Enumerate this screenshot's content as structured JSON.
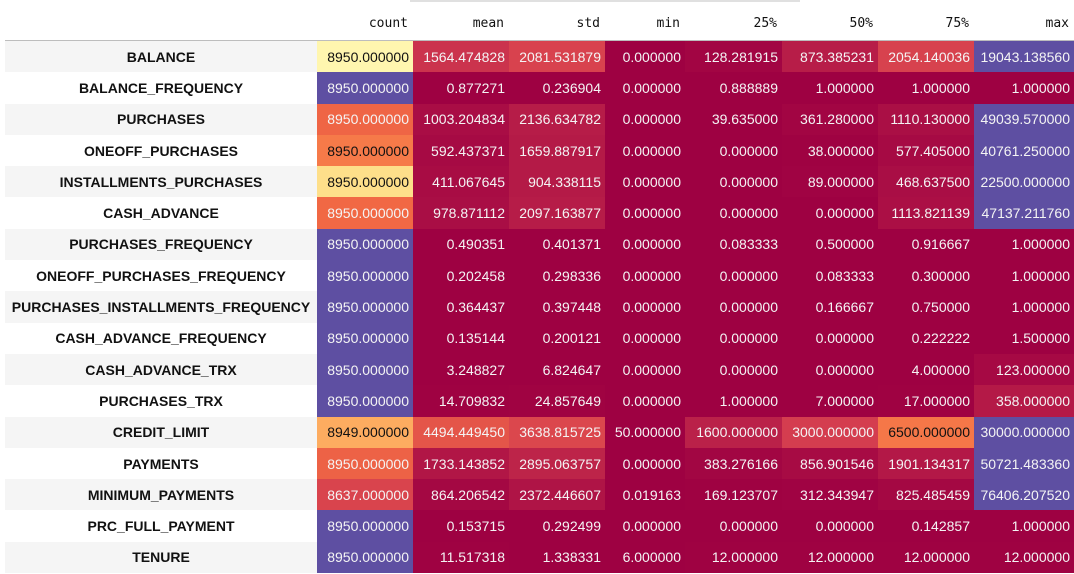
{
  "chart_data": {
    "type": "table",
    "columns": [
      "count",
      "mean",
      "std",
      "min",
      "25%",
      "50%",
      "75%",
      "max"
    ],
    "rows": [
      {
        "label": "BALANCE",
        "values": [
          "8950.000000",
          "1564.474828",
          "2081.531879",
          "0.000000",
          "128.281915",
          "873.385231",
          "2054.140036",
          "19043.138560"
        ]
      },
      {
        "label": "BALANCE_FREQUENCY",
        "values": [
          "8950.000000",
          "0.877271",
          "0.236904",
          "0.000000",
          "0.888889",
          "1.000000",
          "1.000000",
          "1.000000"
        ]
      },
      {
        "label": "PURCHASES",
        "values": [
          "8950.000000",
          "1003.204834",
          "2136.634782",
          "0.000000",
          "39.635000",
          "361.280000",
          "1110.130000",
          "49039.570000"
        ]
      },
      {
        "label": "ONEOFF_PURCHASES",
        "values": [
          "8950.000000",
          "592.437371",
          "1659.887917",
          "0.000000",
          "0.000000",
          "38.000000",
          "577.405000",
          "40761.250000"
        ]
      },
      {
        "label": "INSTALLMENTS_PURCHASES",
        "values": [
          "8950.000000",
          "411.067645",
          "904.338115",
          "0.000000",
          "0.000000",
          "89.000000",
          "468.637500",
          "22500.000000"
        ]
      },
      {
        "label": "CASH_ADVANCE",
        "values": [
          "8950.000000",
          "978.871112",
          "2097.163877",
          "0.000000",
          "0.000000",
          "0.000000",
          "1113.821139",
          "47137.211760"
        ]
      },
      {
        "label": "PURCHASES_FREQUENCY",
        "values": [
          "8950.000000",
          "0.490351",
          "0.401371",
          "0.000000",
          "0.083333",
          "0.500000",
          "0.916667",
          "1.000000"
        ]
      },
      {
        "label": "ONEOFF_PURCHASES_FREQUENCY",
        "values": [
          "8950.000000",
          "0.202458",
          "0.298336",
          "0.000000",
          "0.000000",
          "0.083333",
          "0.300000",
          "1.000000"
        ]
      },
      {
        "label": "PURCHASES_INSTALLMENTS_FREQUENCY",
        "values": [
          "8950.000000",
          "0.364437",
          "0.397448",
          "0.000000",
          "0.000000",
          "0.166667",
          "0.750000",
          "1.000000"
        ]
      },
      {
        "label": "CASH_ADVANCE_FREQUENCY",
        "values": [
          "8950.000000",
          "0.135144",
          "0.200121",
          "0.000000",
          "0.000000",
          "0.000000",
          "0.222222",
          "1.500000"
        ]
      },
      {
        "label": "CASH_ADVANCE_TRX",
        "values": [
          "8950.000000",
          "3.248827",
          "6.824647",
          "0.000000",
          "0.000000",
          "0.000000",
          "4.000000",
          "123.000000"
        ]
      },
      {
        "label": "PURCHASES_TRX",
        "values": [
          "8950.000000",
          "14.709832",
          "24.857649",
          "0.000000",
          "1.000000",
          "7.000000",
          "17.000000",
          "358.000000"
        ]
      },
      {
        "label": "CREDIT_LIMIT",
        "values": [
          "8949.000000",
          "4494.449450",
          "3638.815725",
          "50.000000",
          "1600.000000",
          "3000.000000",
          "6500.000000",
          "30000.000000"
        ]
      },
      {
        "label": "PAYMENTS",
        "values": [
          "8950.000000",
          "1733.143852",
          "2895.063757",
          "0.000000",
          "383.276166",
          "856.901546",
          "1901.134317",
          "50721.483360"
        ]
      },
      {
        "label": "MINIMUM_PAYMENTS",
        "values": [
          "8637.000000",
          "864.206542",
          "2372.446607",
          "0.019163",
          "169.123707",
          "312.343947",
          "825.485459",
          "76406.207520"
        ]
      },
      {
        "label": "PRC_FULL_PAYMENT",
        "values": [
          "8950.000000",
          "0.153715",
          "0.292499",
          "0.000000",
          "0.000000",
          "0.000000",
          "0.142857",
          "1.000000"
        ]
      },
      {
        "label": "TENURE",
        "values": [
          "8950.000000",
          "11.517318",
          "1.338331",
          "6.000000",
          "12.000000",
          "12.000000",
          "12.000000",
          "12.000000"
        ]
      }
    ],
    "colormap": "Spectral",
    "color_scale": "per-row",
    "colors": {
      "low": "#9e0142",
      "high": "#5e4fa2"
    }
  }
}
